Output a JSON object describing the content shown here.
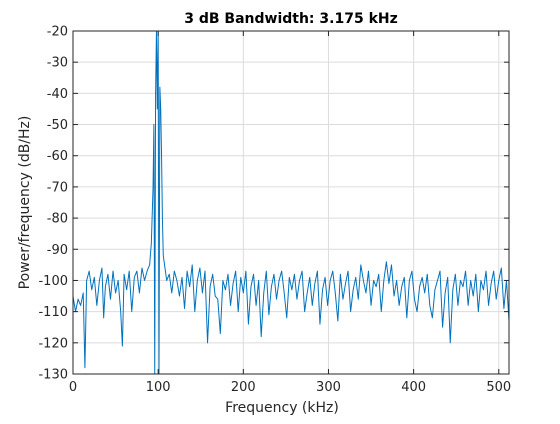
{
  "chart_data": {
    "type": "line",
    "title": "3 dB Bandwidth: 3.175 kHz",
    "xlabel": "Frequency (kHz)",
    "ylabel": "Power/frequency (dB/Hz)",
    "xlim": [
      0,
      512
    ],
    "ylim": [
      -130,
      -20
    ],
    "xticks": [
      0,
      100,
      200,
      300,
      400,
      500
    ],
    "yticks": [
      -20,
      -30,
      -40,
      -50,
      -60,
      -70,
      -80,
      -90,
      -100,
      -110,
      -120,
      -130
    ],
    "grid": true,
    "legend": "none",
    "series": [
      {
        "color": "#0072bd",
        "x": [
          0,
          3,
          6,
          9,
          12,
          14,
          16,
          19,
          22,
          25,
          28,
          31,
          34,
          36,
          38,
          41,
          44,
          47,
          50,
          53,
          56,
          58,
          60,
          63,
          66,
          69,
          72,
          75,
          78,
          81,
          84,
          87,
          90,
          92,
          94,
          95,
          96,
          97,
          98,
          99,
          100,
          101,
          102,
          103,
          104,
          105,
          106,
          108,
          110,
          113,
          116,
          119,
          122,
          125,
          128,
          131,
          134,
          137,
          140,
          143,
          146,
          149,
          152,
          155,
          158,
          161,
          164,
          167,
          170,
          173,
          176,
          179,
          182,
          185,
          188,
          191,
          194,
          197,
          200,
          203,
          206,
          209,
          212,
          215,
          218,
          221,
          224,
          227,
          230,
          233,
          236,
          239,
          242,
          245,
          248,
          251,
          254,
          257,
          260,
          263,
          266,
          269,
          272,
          275,
          278,
          281,
          284,
          287,
          290,
          293,
          296,
          299,
          302,
          305,
          308,
          311,
          314,
          317,
          320,
          323,
          326,
          329,
          332,
          335,
          338,
          341,
          344,
          347,
          350,
          353,
          356,
          359,
          362,
          365,
          368,
          371,
          374,
          377,
          380,
          383,
          386,
          389,
          392,
          395,
          398,
          401,
          404,
          407,
          410,
          413,
          416,
          419,
          422,
          425,
          428,
          431,
          434,
          437,
          440,
          443,
          446,
          449,
          452,
          455,
          458,
          461,
          464,
          467,
          470,
          473,
          476,
          479,
          482,
          485,
          488,
          491,
          494,
          497,
          500,
          503,
          506,
          509,
          512
        ],
        "y": [
          -105,
          -110,
          -106,
          -108,
          -104,
          -128,
          -100,
          -97,
          -103,
          -99,
          -108,
          -100,
          -96,
          -112,
          -102,
          -98,
          -106,
          -97,
          -104,
          -100,
          -110,
          -121,
          -98,
          -103,
          -97,
          -110,
          -99,
          -97,
          -104,
          -96,
          -100,
          -97,
          -95,
          -88,
          -70,
          -50,
          -130,
          -40,
          -20,
          -45,
          -20,
          -130,
          -38,
          -45,
          -60,
          -80,
          -92,
          -96,
          -100,
          -98,
          -104,
          -97,
          -100,
          -105,
          -99,
          -109,
          -97,
          -102,
          -95,
          -110,
          -100,
          -96,
          -104,
          -97,
          -120,
          -102,
          -98,
          -105,
          -106,
          -117,
          -100,
          -103,
          -98,
          -108,
          -101,
          -97,
          -110,
          -99,
          -104,
          -97,
          -114,
          -102,
          -98,
          -108,
          -100,
          -118,
          -104,
          -97,
          -111,
          -102,
          -98,
          -106,
          -100,
          -97,
          -104,
          -112,
          -99,
          -103,
          -98,
          -106,
          -100,
          -97,
          -110,
          -104,
          -99,
          -108,
          -101,
          -97,
          -114,
          -103,
          -99,
          -108,
          -100,
          -97,
          -104,
          -113,
          -98,
          -106,
          -101,
          -97,
          -110,
          -103,
          -99,
          -106,
          -95,
          -100,
          -104,
          -97,
          -108,
          -100,
          -102,
          -98,
          -110,
          -100,
          -94,
          -101,
          -95,
          -105,
          -100,
          -108,
          -102,
          -99,
          -112,
          -100,
          -97,
          -106,
          -110,
          -102,
          -99,
          -104,
          -98,
          -108,
          -112,
          -103,
          -100,
          -97,
          -115,
          -104,
          -99,
          -120,
          -103,
          -98,
          -108,
          -100,
          -102,
          -97,
          -108,
          -100,
          -105,
          -98,
          -110,
          -100,
          -103,
          -97,
          -108,
          -101,
          -97,
          -106,
          -100,
          -96,
          -109,
          -100,
          -113
        ]
      }
    ]
  }
}
